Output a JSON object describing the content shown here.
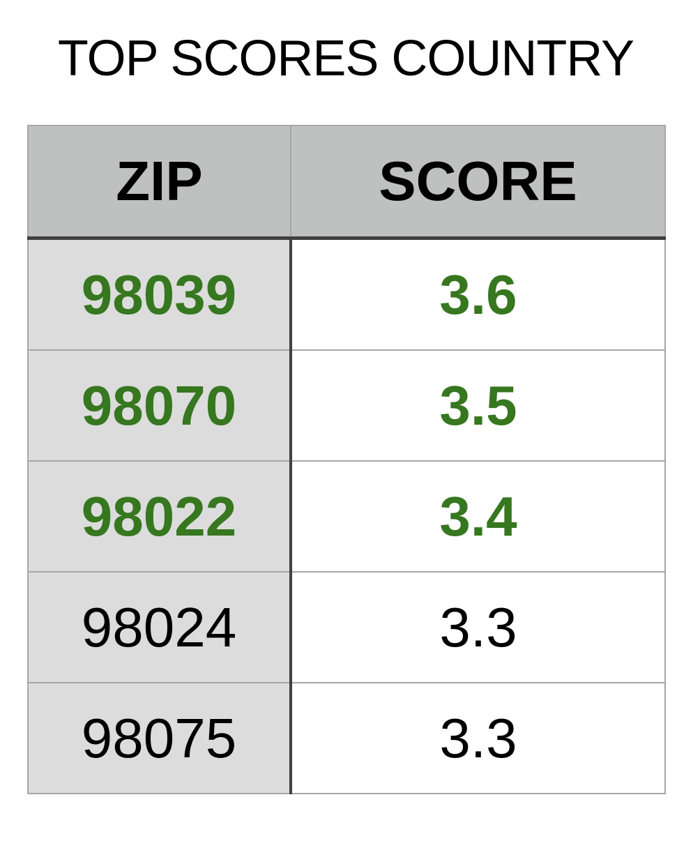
{
  "chart_data": {
    "type": "table",
    "title": "TOP SCORES COUNTRY",
    "columns": [
      "ZIP",
      "SCORE"
    ],
    "rows": [
      {
        "zip": "98039",
        "score": "3.6",
        "highlight": true
      },
      {
        "zip": "98070",
        "score": "3.5",
        "highlight": true
      },
      {
        "zip": "98022",
        "score": "3.4",
        "highlight": true
      },
      {
        "zip": "98024",
        "score": "3.3",
        "highlight": false
      },
      {
        "zip": "98075",
        "score": "3.3",
        "highlight": false
      }
    ]
  },
  "colors": {
    "header_background": "#bfc1c0",
    "zip_column_background": "#dcdcdc",
    "highlight_text": "#36771f",
    "normal_text": "#000000",
    "divider": "#404040",
    "grid_line": "#a6a6a6"
  }
}
